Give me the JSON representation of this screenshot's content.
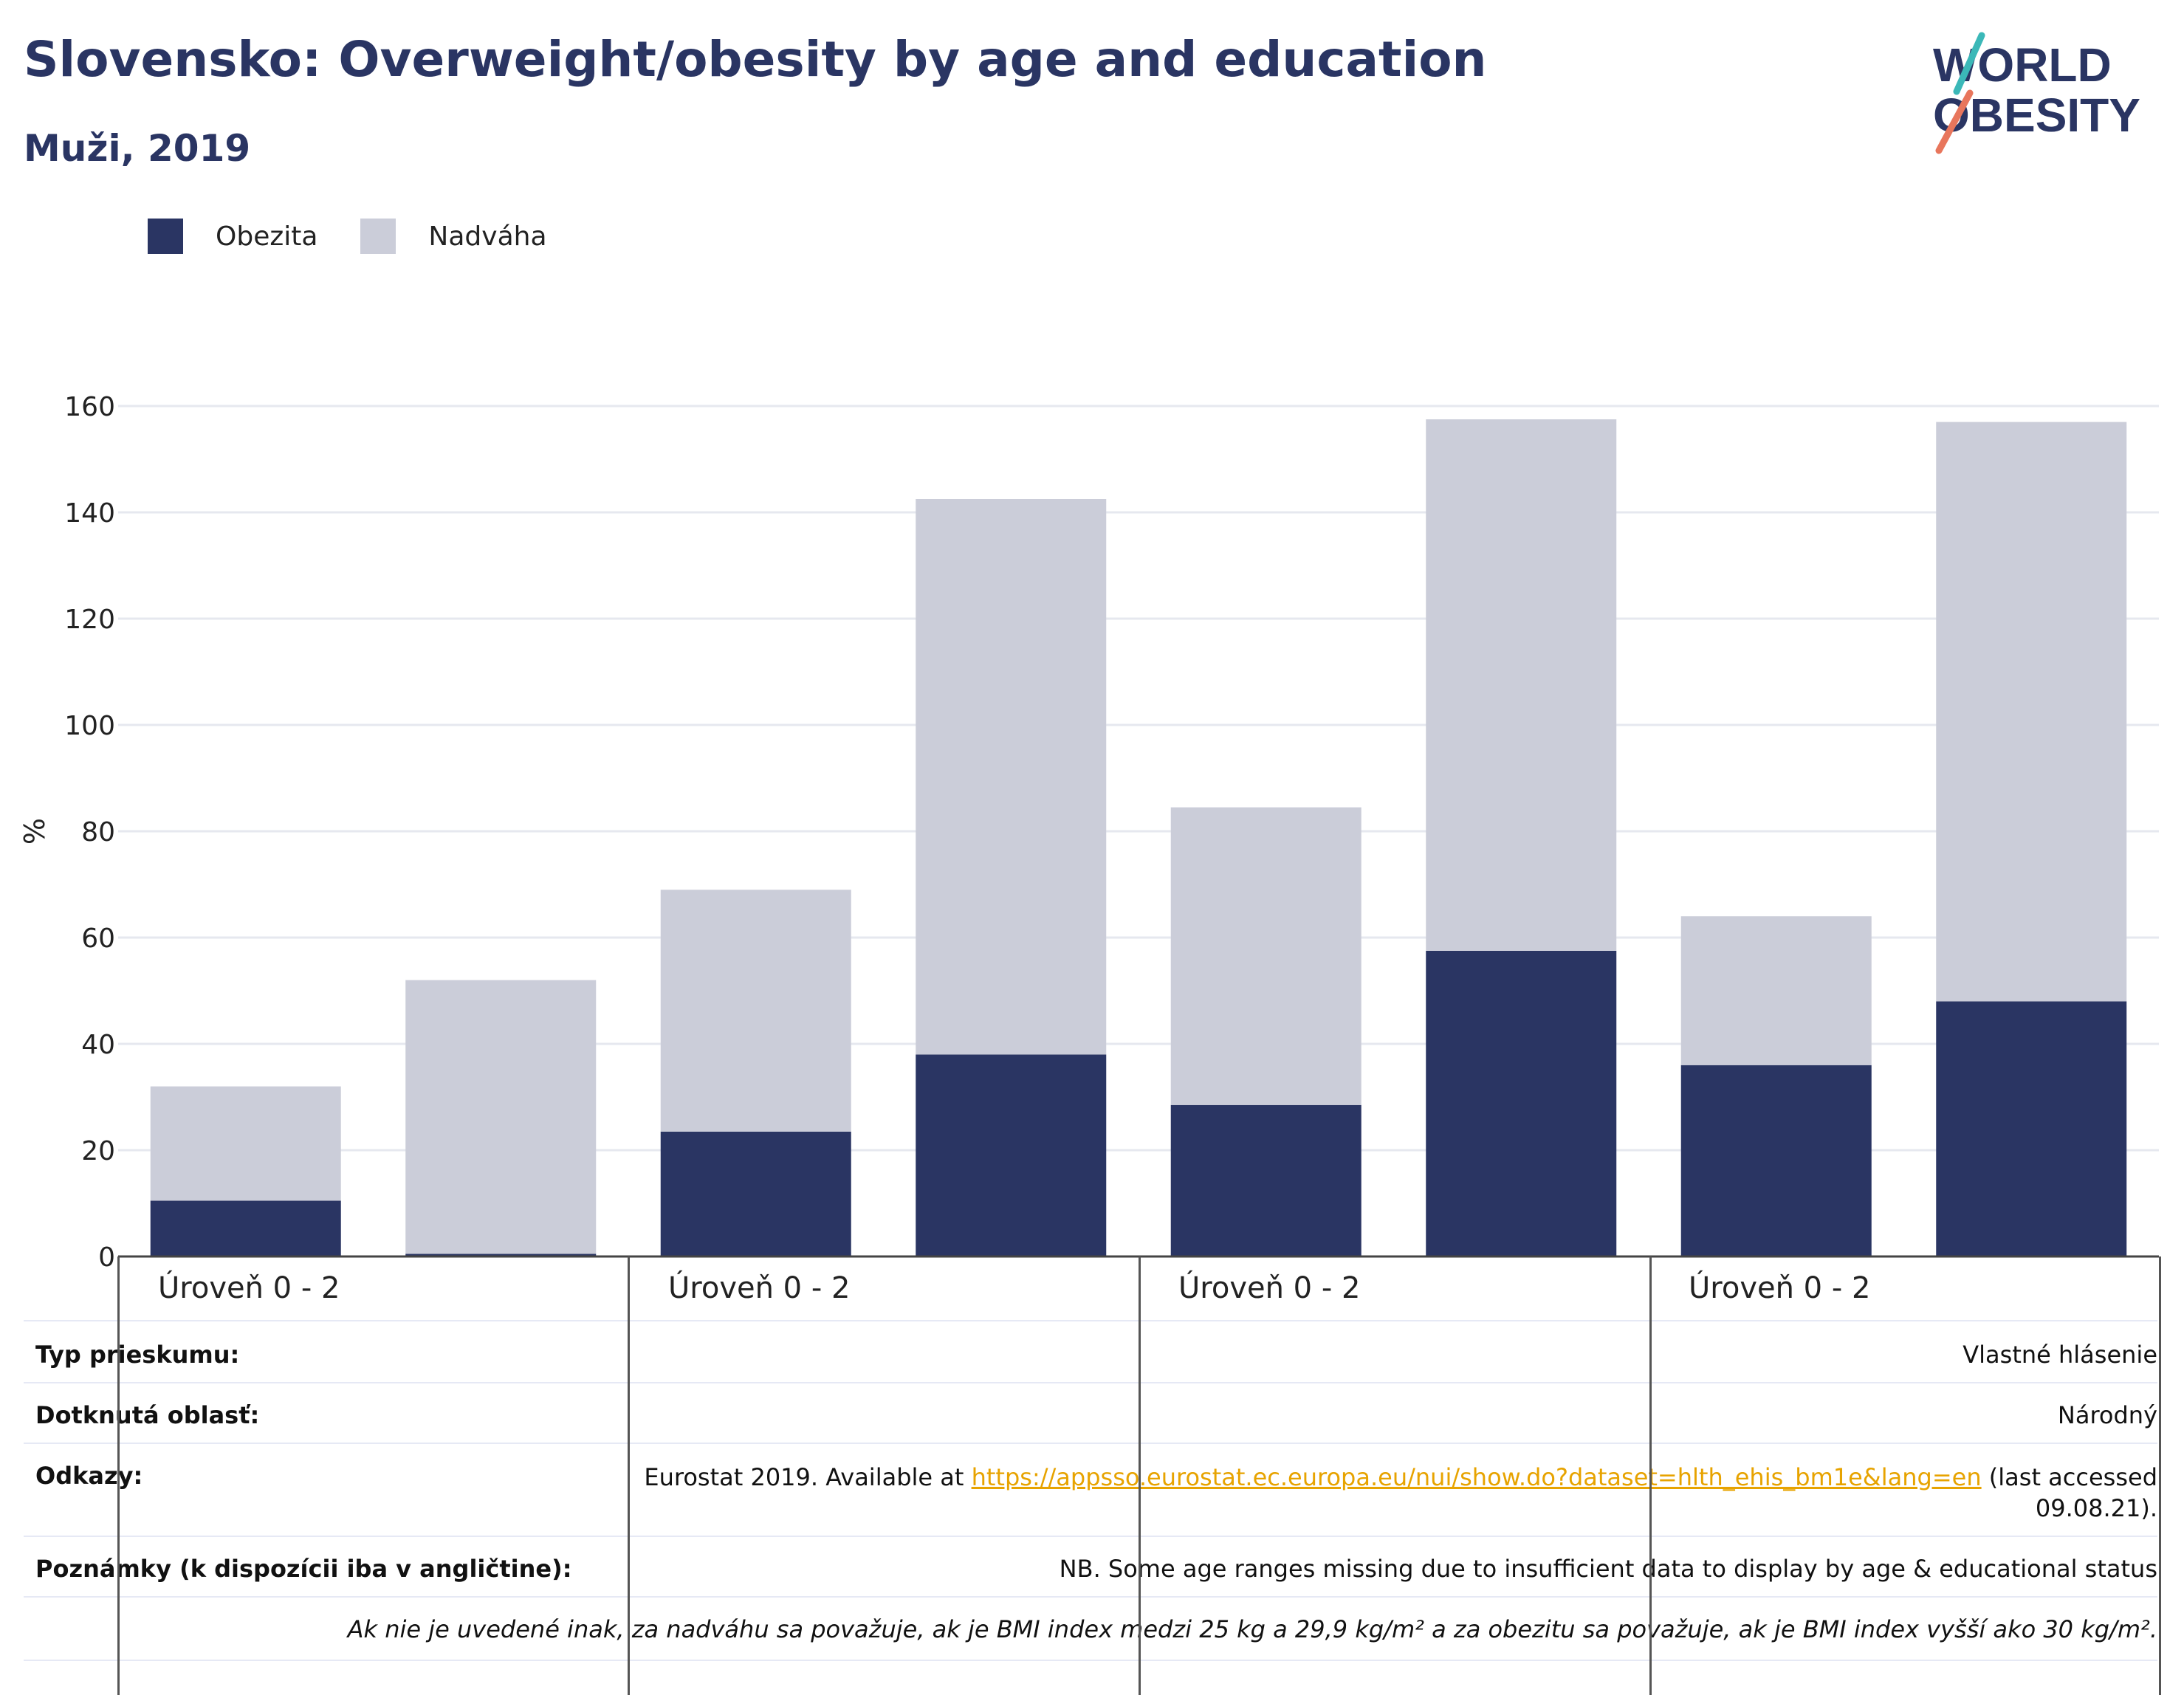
{
  "title": "Slovensko: Overweight/obesity by age and education",
  "subtitle": "Muži, 2019",
  "logo": {
    "line1": "WORLD",
    "line2": "OBESITY"
  },
  "chart_data": {
    "type": "bar",
    "stacked": true,
    "ylabel": "%",
    "ylim": [
      0,
      160
    ],
    "yticks": [
      0,
      20,
      40,
      60,
      80,
      100,
      120,
      140,
      160
    ],
    "group_labels": [
      "Úroveň 0 - 2",
      "Úroveň 0 - 2",
      "Úroveň 0 - 2",
      "Úroveň 0 - 2"
    ],
    "series": [
      {
        "name": "Obezita",
        "color": "#2a3563",
        "values": [
          10.5,
          0.5,
          23.5,
          38,
          28.5,
          57.5,
          36,
          48
        ]
      },
      {
        "name": "Nadváha",
        "color": "#cbcdd9",
        "values": [
          21.5,
          51.5,
          45.5,
          104.5,
          56,
          100,
          28,
          109
        ]
      }
    ],
    "grid": true,
    "legend": "top-left"
  },
  "table": {
    "rows": [
      {
        "label": "Typ prieskumu:",
        "value": "Vlastné hlásenie"
      },
      {
        "label": "Dotknutá oblasť:",
        "value": "Národný"
      },
      {
        "label": "Odkazy:",
        "value_prefix": "Eurostat 2019. Available at ",
        "link": "https://appsso.eurostat.ec.europa.eu/nui/show.do?dataset=hlth_ehis_bm1e&lang=en",
        "value_suffix": " (last accessed",
        "value_line2": "09.08.21)."
      },
      {
        "label": "Poznámky (k dispozícii iba v angličtine):",
        "value": "NB. Some age ranges missing due to insufficient data to display by age & educational status"
      },
      {
        "label": "",
        "value": "Ak nie je uvedené inak, za nadváhu sa považuje, ak je BMI index medzi 25 kg a 29,9 kg/m² a za obezitu sa považuje, ak je BMI index vyšší ako 30 kg/m²."
      }
    ]
  }
}
